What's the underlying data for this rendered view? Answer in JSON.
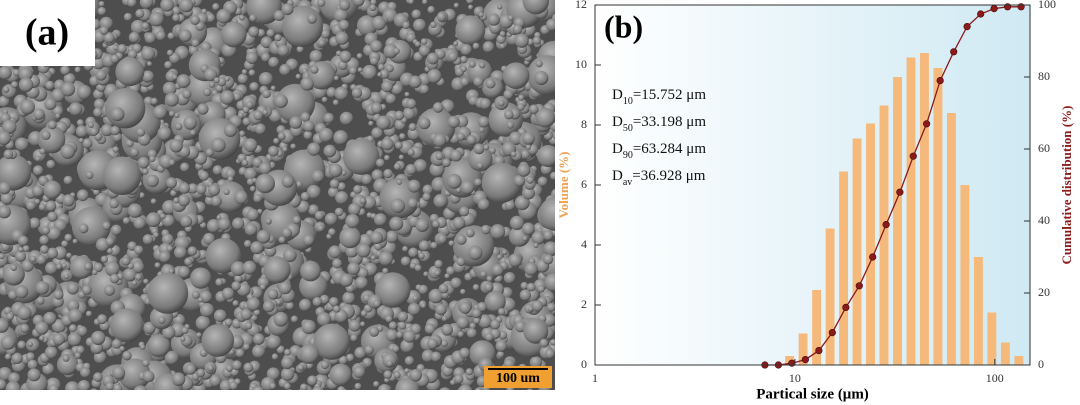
{
  "panel_a": {
    "label": "(a)",
    "scale_bar": "100 um"
  },
  "chart_data": {
    "type": "combo",
    "label": "(b)",
    "xlabel": "Partical size (μm)",
    "ylabel": "Volume (%)",
    "y2label": "Cumulative distribution (%)",
    "xscale": "log",
    "xlim": [
      1,
      150
    ],
    "xticks": [
      1,
      10,
      100
    ],
    "ylim": [
      0,
      12
    ],
    "yticks": [
      0,
      2,
      4,
      6,
      8,
      10,
      12
    ],
    "y2lim": [
      0,
      100
    ],
    "y2ticks": [
      0,
      20,
      40,
      60,
      80,
      100
    ],
    "annotations": [
      {
        "symbol": "D",
        "subscript": "10",
        "text": "=15.752 μm"
      },
      {
        "symbol": "D",
        "subscript": "50",
        "text": "=33.198 μm"
      },
      {
        "symbol": "D",
        "subscript": "90",
        "text": "=63.284 μm"
      },
      {
        "symbol": "D",
        "subscript": "av",
        "text": "=36.928 μm"
      }
    ],
    "histogram": {
      "color": "#f6b97c",
      "bins": [
        8.71,
        10.17,
        11.88,
        13.88,
        16.21,
        18.93,
        22.11,
        25.83,
        30.17,
        35.24,
        41.16,
        48.07,
        56.15,
        65.58,
        76.6,
        89.5,
        104.5,
        122.1,
        142.6
      ],
      "values": [
        0.3,
        1.05,
        2.5,
        4.55,
        6.45,
        7.55,
        8.05,
        8.65,
        9.6,
        10.25,
        10.4,
        9.9,
        8.4,
        6.0,
        3.6,
        1.75,
        0.75,
        0.3
      ]
    },
    "cumulative": {
      "color": "#8b1a1a",
      "axis": "y2",
      "x": [
        7.08,
        8.27,
        9.66,
        11.28,
        13.18,
        15.39,
        17.98,
        21.0,
        24.5,
        28.6,
        33.5,
        39.1,
        45.6,
        53.3,
        62.3,
        72.7,
        85.0,
        99.2,
        115.9,
        135.4
      ],
      "values": [
        0,
        0,
        0.5,
        1.5,
        4,
        9,
        16,
        22,
        30,
        39,
        48,
        58,
        67,
        79,
        87,
        94,
        97.5,
        99,
        99.5,
        99.5
      ]
    }
  }
}
